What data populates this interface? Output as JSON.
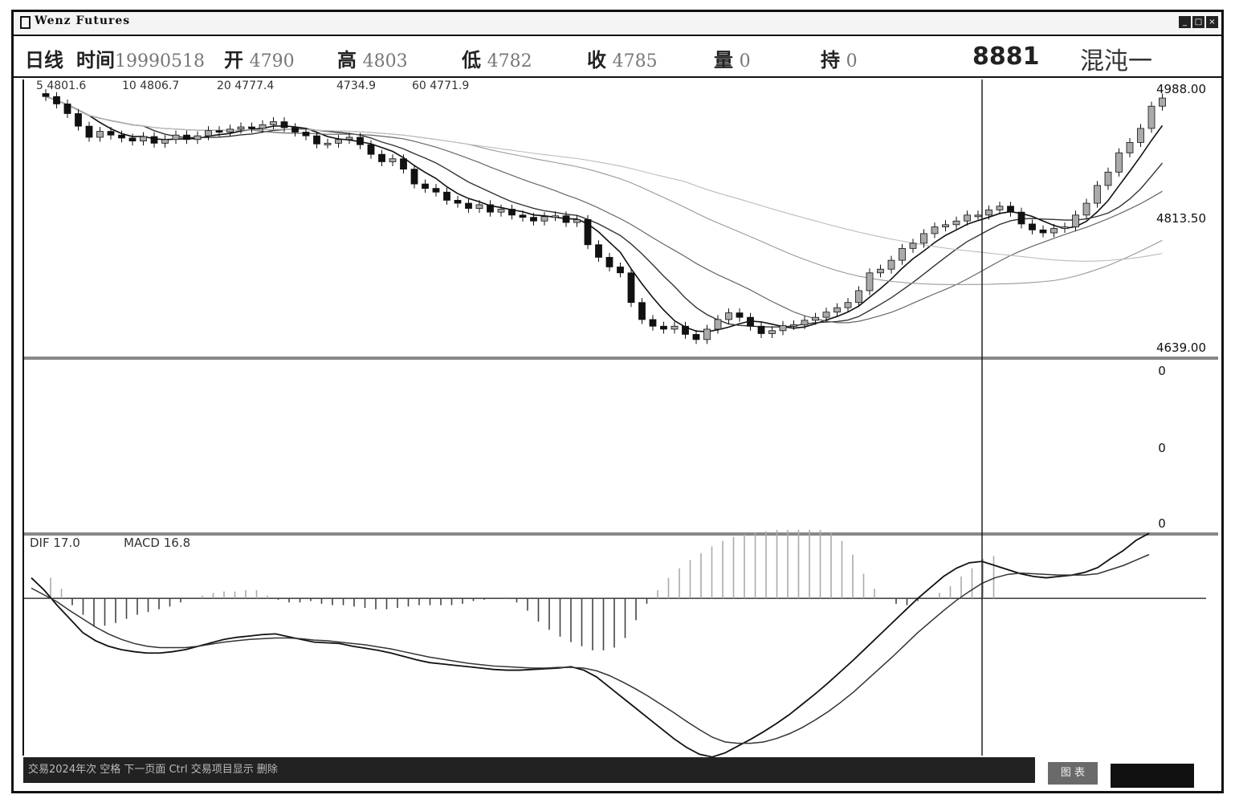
{
  "app": {
    "title": "Wenz Futures"
  },
  "window_controls": [
    "_",
    "□",
    "×"
  ],
  "info": {
    "period": "日线",
    "time_label": "时间",
    "time_value": "19990518",
    "open_label": "开",
    "open_value": "4790",
    "high_label": "高",
    "high_value": "4803",
    "low_label": "低",
    "low_value": "4782",
    "close_label": "收",
    "close_value": "4785",
    "volume_label": "量",
    "volume_value": "0",
    "hold_label": "持",
    "hold_value": "0",
    "code": "8881",
    "name": "混沌一"
  },
  "colors": {
    "ink": "#111111",
    "grey": "#888888",
    "light": "#aaaaaa",
    "background": "#ffffff"
  },
  "statusbar": {
    "text": "交易2024年次 空格 下一页面 Ctrl 交易项目显示 删除",
    "box_label": "图 表"
  },
  "chart_data": [
    {
      "type": "candlestick",
      "panel": "price",
      "ma_legend": [
        {
          "label": "5 4801.6"
        },
        {
          "label": "10 4806.7"
        },
        {
          "label": "20 4777.4"
        },
        {
          "label": "4734.9"
        },
        {
          "label": "60 4771.9"
        }
      ],
      "ylim": [
        4639,
        4988
      ],
      "y_ticks": [
        "4988.00",
        "4813.50",
        "4639.00"
      ],
      "cursor_index": 84,
      "closes": [
        4978,
        4968,
        4955,
        4938,
        4923,
        4931,
        4926,
        4922,
        4918,
        4924,
        4915,
        4920,
        4926,
        4920,
        4925,
        4932,
        4930,
        4934,
        4937,
        4935,
        4940,
        4944,
        4936,
        4930,
        4925,
        4914,
        4915,
        4920,
        4923,
        4913,
        4900,
        4890,
        4894,
        4880,
        4860,
        4854,
        4849,
        4838,
        4834,
        4827,
        4832,
        4822,
        4826,
        4818,
        4815,
        4810,
        4816,
        4817,
        4808,
        4812,
        4778,
        4761,
        4748,
        4740,
        4700,
        4677,
        4668,
        4664,
        4668,
        4657,
        4650,
        4664,
        4677,
        4686,
        4680,
        4668,
        4658,
        4662,
        4669,
        4670,
        4676,
        4680,
        4687,
        4693,
        4700,
        4716,
        4740,
        4745,
        4757,
        4773,
        4780,
        4793,
        4802,
        4805,
        4810,
        4818,
        4818,
        4825,
        4830,
        4822,
        4806,
        4798,
        4794,
        4800,
        4802,
        4818,
        4834,
        4858,
        4876,
        4902,
        4916,
        4935,
        4965,
        4976
      ]
    },
    {
      "type": "line",
      "panel": "volume",
      "y_ticks": [
        "0",
        "0",
        "0"
      ]
    },
    {
      "type": "macd",
      "panel": "macd",
      "legend": [
        "DIF 17.0",
        "MACD 16.8"
      ],
      "ylim": [
        -230,
        80
      ],
      "dif": [
        30,
        12,
        -10,
        -30,
        -50,
        -62,
        -70,
        -75,
        -78,
        -80,
        -80,
        -78,
        -75,
        -70,
        -65,
        -60,
        -57,
        -55,
        -53,
        -52,
        -56,
        -60,
        -64,
        -65,
        -66,
        -70,
        -73,
        -76,
        -80,
        -85,
        -90,
        -94,
        -96,
        -98,
        -100,
        -102,
        -104,
        -105,
        -105,
        -104,
        -103,
        -102,
        -100,
        -105,
        -115,
        -130,
        -145,
        -160,
        -175,
        -190,
        -205,
        -218,
        -228,
        -232,
        -226,
        -216,
        -206,
        -195,
        -183,
        -170,
        -155,
        -140,
        -124,
        -107,
        -90,
        -72,
        -54,
        -36,
        -18,
        0,
        16,
        32,
        44,
        52,
        54,
        48,
        42,
        36,
        32,
        30,
        32,
        34,
        38,
        45,
        58,
        70,
        85,
        95
      ],
      "dea": [
        15,
        5,
        -5,
        -18,
        -30,
        -42,
        -52,
        -60,
        -66,
        -70,
        -72,
        -72,
        -72,
        -70,
        -67,
        -64,
        -62,
        -60,
        -59,
        -58,
        -58,
        -59,
        -61,
        -62,
        -64,
        -66,
        -68,
        -71,
        -74,
        -78,
        -82,
        -86,
        -89,
        -92,
        -95,
        -97,
        -99,
        -100,
        -101,
        -102,
        -102,
        -101,
        -101,
        -102,
        -106,
        -113,
        -122,
        -132,
        -143,
        -155,
        -167,
        -180,
        -192,
        -203,
        -210,
        -212,
        -212,
        -210,
        -205,
        -198,
        -189,
        -178,
        -166,
        -152,
        -137,
        -120,
        -103,
        -86,
        -68,
        -50,
        -34,
        -18,
        -3,
        10,
        22,
        30,
        35,
        37,
        36,
        35,
        34,
        34,
        34,
        36,
        42,
        48,
        56,
        64
      ],
      "hist": [
        30,
        14,
        -10,
        -24,
        -40,
        -40,
        -36,
        -30,
        -24,
        -20,
        -16,
        -12,
        -6,
        0,
        4,
        8,
        10,
        10,
        12,
        12,
        4,
        -2,
        -6,
        -6,
        -4,
        -8,
        -10,
        -10,
        -12,
        -14,
        -16,
        -16,
        -14,
        -12,
        -10,
        -10,
        -10,
        -10,
        -8,
        -4,
        -2,
        0,
        2,
        -6,
        -18,
        -34,
        -46,
        -56,
        -64,
        -70,
        -76,
        -76,
        -72,
        -58,
        -32,
        -8,
        12,
        30,
        44,
        56,
        66,
        76,
        84,
        90,
        94,
        96,
        98,
        100,
        100,
        100,
        100,
        100,
        96,
        84,
        64,
        36,
        14,
        0,
        -8,
        -10,
        -4,
        0,
        8,
        18,
        32,
        44,
        58,
        62
      ]
    }
  ]
}
